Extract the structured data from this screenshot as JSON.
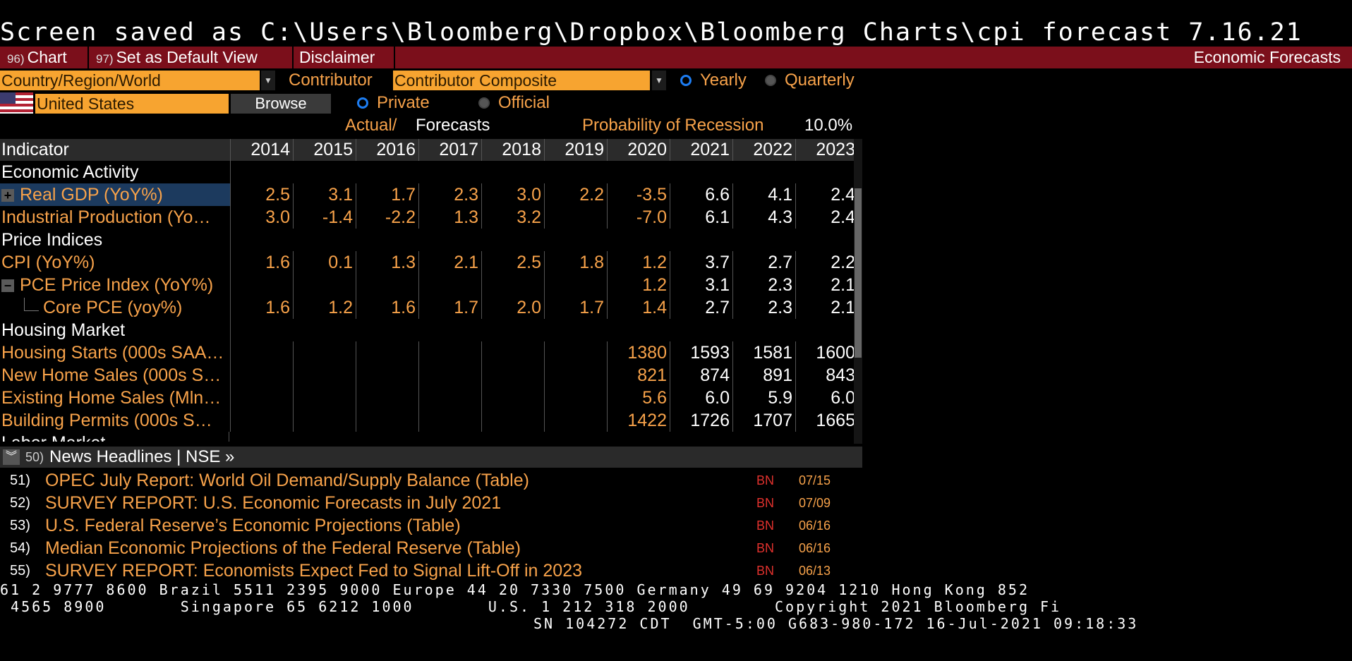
{
  "top_line": "Screen saved as C:\\Users\\Bloomberg\\Dropbox\\Bloomberg Charts\\cpi forecast 7.16.21",
  "menu": {
    "chart_num": "96)",
    "chart_label": "Chart",
    "default_num": "97)",
    "default_label": "Set as Default View",
    "disclaimer_label": "Disclaimer",
    "page_title": "Economic Forecasts"
  },
  "filters": {
    "region_value": "Country/Region/World",
    "contributor_label": "Contributor",
    "contributor_value": "Contributor Composite",
    "yearly_label": "Yearly",
    "quarterly_label": "Quarterly",
    "country_value": "United States",
    "browse_label": "Browse",
    "private_label": "Private",
    "official_label": "Official",
    "actual_label": "Actual/",
    "forecasts_label": "Forecasts",
    "recession_label": "Probability of Recession",
    "recession_value": "10.0%"
  },
  "table": {
    "indicator_header": "Indicator",
    "years": [
      "2014",
      "2015",
      "2016",
      "2017",
      "2018",
      "2019",
      "2020",
      "2021",
      "2022",
      "2023"
    ],
    "rows": [
      {
        "label": "Economic Activity",
        "type": "category",
        "values": []
      },
      {
        "label": "Real GDP (YoY%)",
        "type": "data",
        "toggle": "+",
        "values": [
          "2.5",
          "3.1",
          "1.7",
          "2.3",
          "3.0",
          "2.2",
          "-3.5",
          "6.6",
          "4.1",
          "2.4"
        ]
      },
      {
        "label": "Industrial Production (Yo…",
        "type": "data",
        "values": [
          "3.0",
          "-1.4",
          "-2.2",
          "1.3",
          "3.2",
          "",
          "-7.0",
          "6.1",
          "4.3",
          "2.4"
        ]
      },
      {
        "label": "Price Indices",
        "type": "category",
        "values": []
      },
      {
        "label": "CPI (YoY%)",
        "type": "data",
        "values": [
          "1.6",
          "0.1",
          "1.3",
          "2.1",
          "2.5",
          "1.8",
          "1.2",
          "3.7",
          "2.7",
          "2.2"
        ]
      },
      {
        "label": "PCE Price Index (YoY%)",
        "type": "data",
        "toggle": "−",
        "values": [
          "",
          "",
          "",
          "",
          "",
          "",
          "1.2",
          "3.1",
          "2.3",
          "2.1"
        ]
      },
      {
        "label": "Core PCE (yoy%)",
        "type": "data",
        "child": true,
        "values": [
          "1.6",
          "1.2",
          "1.6",
          "1.7",
          "2.0",
          "1.7",
          "1.4",
          "2.7",
          "2.3",
          "2.1"
        ]
      },
      {
        "label": "Housing Market",
        "type": "category",
        "values": []
      },
      {
        "label": "Housing Starts (000s SAA…",
        "type": "data",
        "values": [
          "",
          "",
          "",
          "",
          "",
          "",
          "1380",
          "1593",
          "1581",
          "1600"
        ]
      },
      {
        "label": "New Home Sales (000s S…",
        "type": "data",
        "values": [
          "",
          "",
          "",
          "",
          "",
          "",
          "821",
          "874",
          "891",
          "843"
        ]
      },
      {
        "label": "Existing Home Sales (Mln…",
        "type": "data",
        "values": [
          "",
          "",
          "",
          "",
          "",
          "",
          "5.6",
          "6.0",
          "5.9",
          "6.0"
        ]
      },
      {
        "label": "Building Permits (000s S…",
        "type": "data",
        "values": [
          "",
          "",
          "",
          "",
          "",
          "",
          "1422",
          "1726",
          "1707",
          "1665"
        ]
      },
      {
        "label": "Labor Market",
        "type": "category",
        "values": []
      }
    ]
  },
  "news": {
    "num": "50)",
    "header": "News Headlines | NSE »",
    "items": [
      {
        "num": "51)",
        "title": "OPEC July Report: World Oil Demand/Supply Balance (Table)",
        "source": "BN",
        "date": "07/15"
      },
      {
        "num": "52)",
        "title": "SURVEY REPORT: U.S. Economic Forecasts in July 2021",
        "source": "BN",
        "date": "07/09"
      },
      {
        "num": "53)",
        "title": "U.S. Federal Reserve’s Economic Projections (Table)",
        "source": "BN",
        "date": "06/16"
      },
      {
        "num": "54)",
        "title": "Median Economic Projections of the Federal Reserve (Table)",
        "source": "BN",
        "date": "06/16"
      },
      {
        "num": "55)",
        "title": "SURVEY REPORT: Economists Expect Fed to Signal Lift-Off in 2023",
        "source": "BN",
        "date": "06/13"
      }
    ]
  },
  "footer": {
    "line1": "61 2 9777 8600 Brazil 5511 2395 9000 Europe 44 20 7330 7500 Germany 49 69 9204 1210 Hong Kong 852",
    "line2": " 4565 8900       Singapore 65 6212 1000       U.S. 1 212 318 2000        Copyright 2021 Bloomberg Fi",
    "line3": "SN 104272 CDT  GMT-5:00 G683-980-172 16-Jul-2021 09:18:33"
  }
}
